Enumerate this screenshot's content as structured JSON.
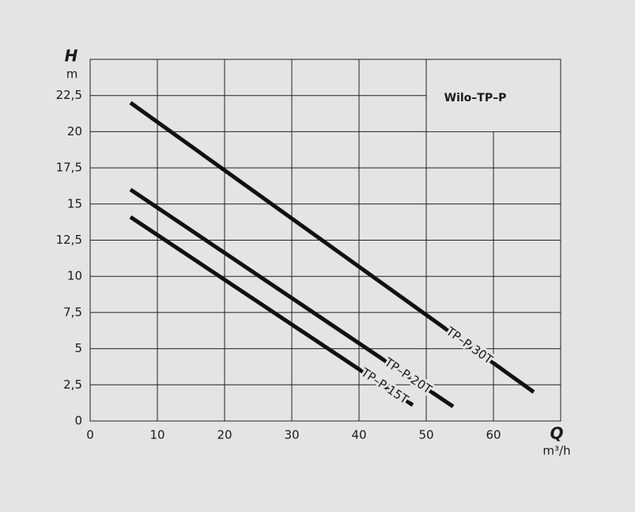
{
  "chart_data": {
    "type": "line",
    "title": "Wilo–TP–P",
    "y_label": "H",
    "y_unit": "m",
    "x_label": "Q",
    "x_unit": "m³/h",
    "xlim": [
      0,
      70
    ],
    "xticks": [
      0,
      10,
      20,
      30,
      40,
      50,
      60
    ],
    "ylim": [
      0,
      25
    ],
    "yticks": [
      0,
      {
        "value": 2.5,
        "label": "2,5"
      },
      5,
      {
        "value": 7.5,
        "label": "7,5"
      },
      10,
      {
        "value": 12.5,
        "label": "12,5"
      },
      15,
      {
        "value": 17.5,
        "label": "17,5"
      },
      20,
      {
        "value": 22.5,
        "label": "22,5"
      }
    ],
    "grid": true,
    "series": [
      {
        "name": "TP–P 30T",
        "color": "#111111",
        "x": [
          6,
          66
        ],
        "values": [
          22,
          2
        ]
      },
      {
        "name": "TP–P 20T",
        "color": "#111111",
        "x": [
          6,
          54
        ],
        "values": [
          16,
          1
        ]
      },
      {
        "name": "TP–P 15T",
        "color": "#111111",
        "x": [
          6,
          48
        ],
        "values": [
          14.1,
          1.1
        ]
      }
    ]
  }
}
